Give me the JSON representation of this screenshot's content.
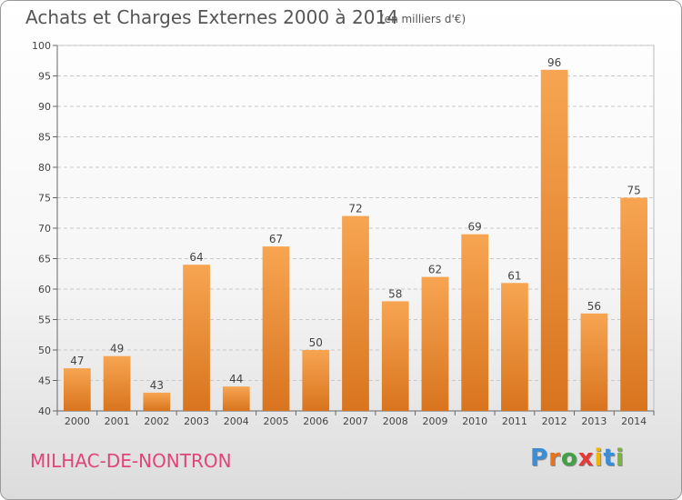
{
  "header": {
    "title": "Achats et Charges Externes 2000 à 2014",
    "subtitle": "(en milliers d'€)"
  },
  "footer": {
    "commune": "MILHAC-DE-NONTRON",
    "logo_letters": [
      {
        "char": "P",
        "color": "#3a8ed8"
      },
      {
        "char": "r",
        "color": "#e8731c"
      },
      {
        "char": "o",
        "color": "#43a047"
      },
      {
        "char": "x",
        "color": "#e53935"
      },
      {
        "char": "i",
        "color": "#f2b400"
      },
      {
        "char": "t",
        "color": "#3a8ed8"
      },
      {
        "char": "i",
        "color": "#7cb342"
      }
    ]
  },
  "chart_data": {
    "type": "bar",
    "categories": [
      "2000",
      "2001",
      "2002",
      "2003",
      "2004",
      "2005",
      "2006",
      "2007",
      "2008",
      "2009",
      "2010",
      "2011",
      "2012",
      "2013",
      "2014"
    ],
    "values": [
      47,
      49,
      43,
      64,
      44,
      67,
      50,
      72,
      58,
      62,
      69,
      61,
      96,
      56,
      75
    ],
    "ylim": [
      40,
      100
    ],
    "yticks": [
      40,
      45,
      50,
      55,
      60,
      65,
      70,
      75,
      80,
      85,
      90,
      95,
      100
    ],
    "grid": true,
    "bar_color": "#f08a2c"
  }
}
